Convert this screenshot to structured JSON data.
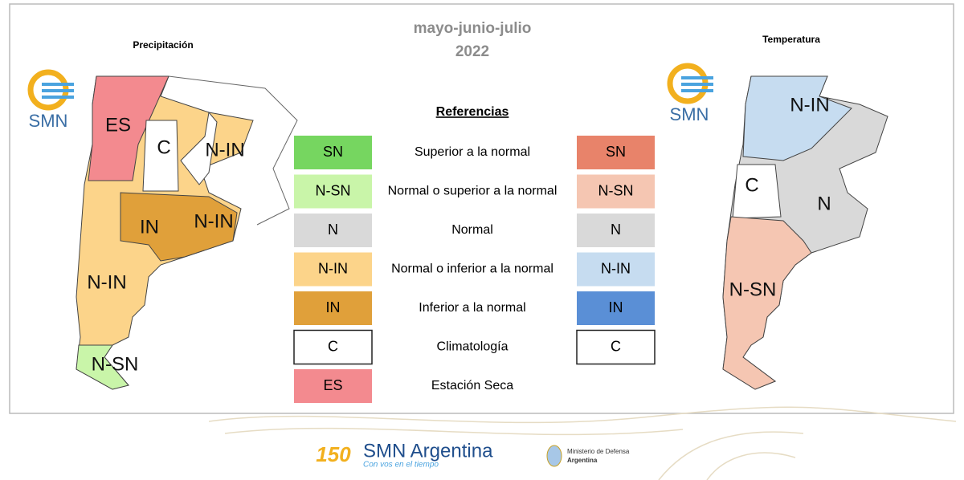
{
  "header": {
    "title": "mayo-junio-julio",
    "year": "2022"
  },
  "maps": [
    {
      "title": "Precipitación",
      "logo": "SMN",
      "labels": [
        "ES",
        "C",
        "N-IN",
        "IN",
        "N-IN",
        "N-IN",
        "N-SN"
      ]
    },
    {
      "title": "Temperatura",
      "logo": "SMN",
      "labels": [
        "N-IN",
        "C",
        "N",
        "N-SN"
      ]
    }
  ],
  "legend": {
    "title": "Referencias",
    "rows": [
      {
        "description": "Superior a la normal",
        "left": {
          "label": "SN",
          "color": "#76d660"
        },
        "right": {
          "label": "SN",
          "color": "#e8836a"
        }
      },
      {
        "description": "Normal o superior a la normal",
        "left": {
          "label": "N-SN",
          "color": "#c9f5a9"
        },
        "right": {
          "label": "N-SN",
          "color": "#f5c6b2"
        }
      },
      {
        "description": "Normal",
        "left": {
          "label": "N",
          "color": "#d9d9d9"
        },
        "right": {
          "label": "N",
          "color": "#d9d9d9"
        }
      },
      {
        "description": "Normal o inferior a la normal",
        "left": {
          "label": "N-IN",
          "color": "#fcd48a"
        },
        "right": {
          "label": "N-IN",
          "color": "#c6dcf0"
        }
      },
      {
        "description": "Inferior a la normal",
        "left": {
          "label": "IN",
          "color": "#e0a03a"
        },
        "right": {
          "label": "IN",
          "color": "#5a8fd6"
        }
      },
      {
        "description": "Climatología",
        "left": {
          "label": "C",
          "color": "#ffffff"
        },
        "right": {
          "label": "C",
          "color": "#ffffff"
        }
      },
      {
        "description": "Estación Seca",
        "left": {
          "label": "ES",
          "color": "#f38a8f"
        }
      }
    ]
  },
  "footer": {
    "anniversary": "150",
    "brand": "SMN Argentina",
    "tagline": "Con vos en el tiempo",
    "ministry": "Ministerio de Defensa",
    "country": "Argentina"
  }
}
